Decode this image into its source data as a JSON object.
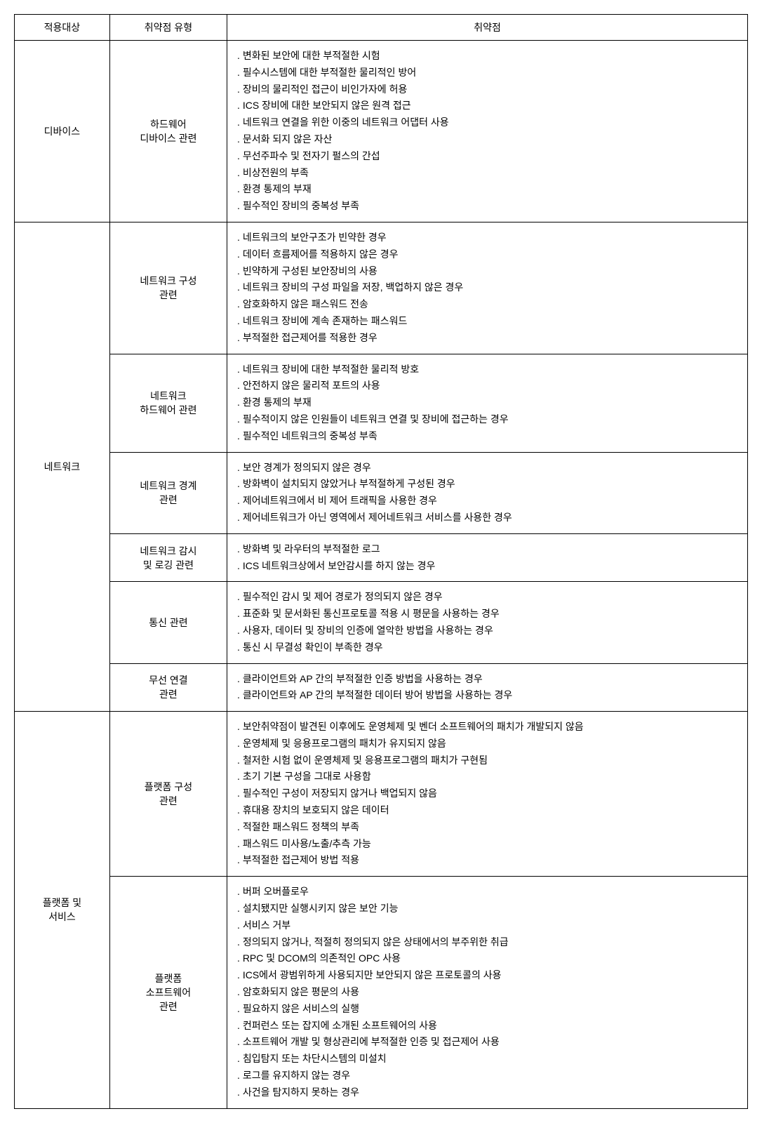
{
  "headers": {
    "target": "적용대상",
    "type": "취약점 유형",
    "vuln": "취약점"
  },
  "targets": {
    "device": "디바이스",
    "network": "네트워크",
    "platform": "플랫폼 및\n서비스"
  },
  "types": {
    "hw_device": "하드웨어\n디바이스 관련",
    "net_config": "네트워크 구성\n관련",
    "net_hw": "네트워크\n하드웨어 관련",
    "net_boundary": "네트워크 경계\n관련",
    "net_monitor": "네트워크 감시\n및 로깅 관련",
    "comm": "통신 관련",
    "wireless": "무선 연결\n관련",
    "platform_config": "플랫폼 구성\n관련",
    "platform_sw": "플랫폼\n소프트웨어\n관련"
  },
  "vulns": {
    "hw_device": [
      "변화된 보안에 대한 부적절한 시험",
      "필수시스템에 대한 부적절한 물리적인 방어",
      "장비의 물리적인 접근이 비인가자에 허용",
      "ICS 장비에 대한 보안되지 않은 원격 접근",
      "네트워크 연결을 위한 이중의 네트워크 어댑터 사용",
      "문서화 되지 않은 자산",
      "무선주파수 및 전자기 펄스의 간섭",
      "비상전원의 부족",
      "환경 통제의 부재",
      "필수적인 장비의 중복성 부족"
    ],
    "net_config": [
      "네트워크의 보안구조가 빈약한 경우",
      "데이터 흐름제어를 적용하지 않은 경우",
      "빈약하게 구성된 보안장비의 사용",
      "네트워크 장비의 구성 파일을 저장, 백업하지 않은 경우",
      "암호화하지 않은 패스워드 전송",
      "네트워크 장비에 계속 존재하는 패스워드",
      "부적절한 접근제어를 적용한 경우"
    ],
    "net_hw": [
      "네트워크 장비에 대한 부적절한 물리적 방호",
      "안전하지 않은 물리적 포트의 사용",
      "환경 통제의 부재",
      "필수적이지 않은 인원들이 네트워크 연결 및 장비에 접근하는 경우",
      "필수적인 네트워크의 중복성 부족"
    ],
    "net_boundary": [
      "보안 경계가 정의되지 않은 경우",
      "방화벽이 설치되지 않았거나 부적절하게 구성된 경우",
      "제어네트워크에서 비 제어 트래픽을 사용한 경우",
      "제어네트워크가 아닌 영역에서 제어네트워크 서비스를 사용한 경우"
    ],
    "net_monitor": [
      "방화벽 및 라우터의 부적절한 로그",
      "ICS 네트워크상에서 보안감시를 하지 않는 경우"
    ],
    "comm": [
      "필수적인 감시 및 제어 경로가 정의되지 않은 경우",
      "표준화 및 문서화된 통신프로토콜 적용 시 평문을 사용하는 경우",
      "사용자, 데이터 및 장비의 인증에 열악한 방법을 사용하는 경우",
      "통신 시 무결성 확인이 부족한 경우"
    ],
    "wireless": [
      "클라이언트와 AP 간의 부적절한 인증 방법을 사용하는 경우",
      "클라이언트와 AP 간의 부적절한 데이터 방어 방법을 사용하는 경우"
    ],
    "platform_config": [
      "보안취약점이 발견된 이후에도 운영체제 및 벤더 소프트웨어의 패치가 개발되지 않음",
      "운영체제 및 응용프로그램의 패치가 유지되지 않음",
      "철저한 시험 없이 운영체제 및 응용프로그램의 패치가 구현됨",
      "초기 기본 구성을 그대로 사용함",
      "필수적인 구성이 저장되지 않거나 백업되지 않음",
      "휴대용 장치의 보호되지 않은 데이터",
      "적절한 패스워드 정책의 부족",
      "패스워드 미사용/노출/추측 가능",
      "부적절한 접근제어 방법 적용"
    ],
    "platform_sw": [
      "버퍼 오버플로우",
      "설치됐지만 실행시키지 않은 보안 기능",
      "서비스 거부",
      "정의되지 않거나, 적절히 정의되지 않은 상태에서의 부주위한 취급",
      "RPC 및 DCOM의 의존적인 OPC 사용",
      "ICS에서 광범위하게 사용되지만 보안되지 않은 프로토콜의 사용",
      "암호화되지 않은 평문의 사용",
      "필요하지 않은 서비스의 실행",
      "컨퍼런스 또는 잡지에 소개된 소프트웨어의 사용",
      "소프트웨어 개발 및 형상관리에 부적절한 인증 및 접근제어 사용",
      "침입탐지 또는 차단시스템의 미설치",
      "로그를 유지하지 않는 경우",
      "사건을 탐지하지 못하는 경우"
    ]
  }
}
